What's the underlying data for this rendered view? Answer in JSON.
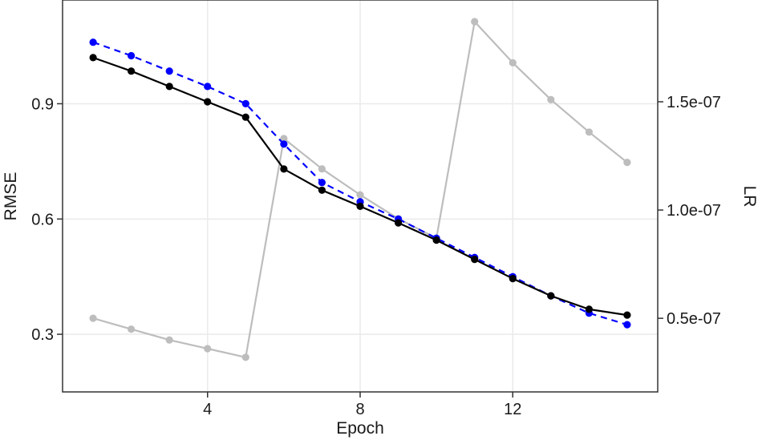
{
  "chart_data": {
    "type": "line",
    "xlabel": "Epoch",
    "ylabel": "RMSE",
    "y2label": "LR",
    "xlim": [
      0.2,
      15.8
    ],
    "ylim": [
      0.15,
      1.17
    ],
    "y2lim": [
      1.6e-08,
      1.97e-07
    ],
    "grid": true,
    "x_ticks": [
      4,
      8,
      12
    ],
    "x_tick_labels": [
      "4",
      "8",
      "12"
    ],
    "y_ticks": [
      0.3,
      0.6,
      0.9
    ],
    "y_tick_labels": [
      "0.3",
      "0.6",
      "0.9"
    ],
    "y2_ticks": [
      5e-08,
      1e-07,
      1.5e-07
    ],
    "y2_tick_labels": [
      "0.5e-07",
      "1.0e-07",
      "1.5e-07"
    ],
    "x": [
      1,
      2,
      3,
      4,
      5,
      6,
      7,
      8,
      9,
      10,
      11,
      12,
      13,
      14,
      15
    ],
    "series": [
      {
        "axis": "right",
        "color": "#bdbdbd",
        "dash": "solid",
        "values": [
          5e-08,
          4.5e-08,
          4e-08,
          3.6e-08,
          3.2e-08,
          1.33e-07,
          1.19e-07,
          1.07e-07,
          9.6e-08,
          8.7e-08,
          1.87e-07,
          1.68e-07,
          1.51e-07,
          1.36e-07,
          1.22e-07
        ]
      },
      {
        "axis": "left",
        "color": "#0000ff",
        "dash": "dashed",
        "values": [
          1.06,
          1.025,
          0.985,
          0.945,
          0.9,
          0.795,
          0.695,
          0.645,
          0.6,
          0.55,
          0.5,
          0.45,
          0.4,
          0.355,
          0.325
        ]
      },
      {
        "axis": "left",
        "color": "#000000",
        "dash": "solid",
        "values": [
          1.02,
          0.985,
          0.945,
          0.905,
          0.865,
          0.73,
          0.675,
          0.633,
          0.59,
          0.545,
          0.495,
          0.445,
          0.4,
          0.365,
          0.35
        ]
      }
    ]
  }
}
